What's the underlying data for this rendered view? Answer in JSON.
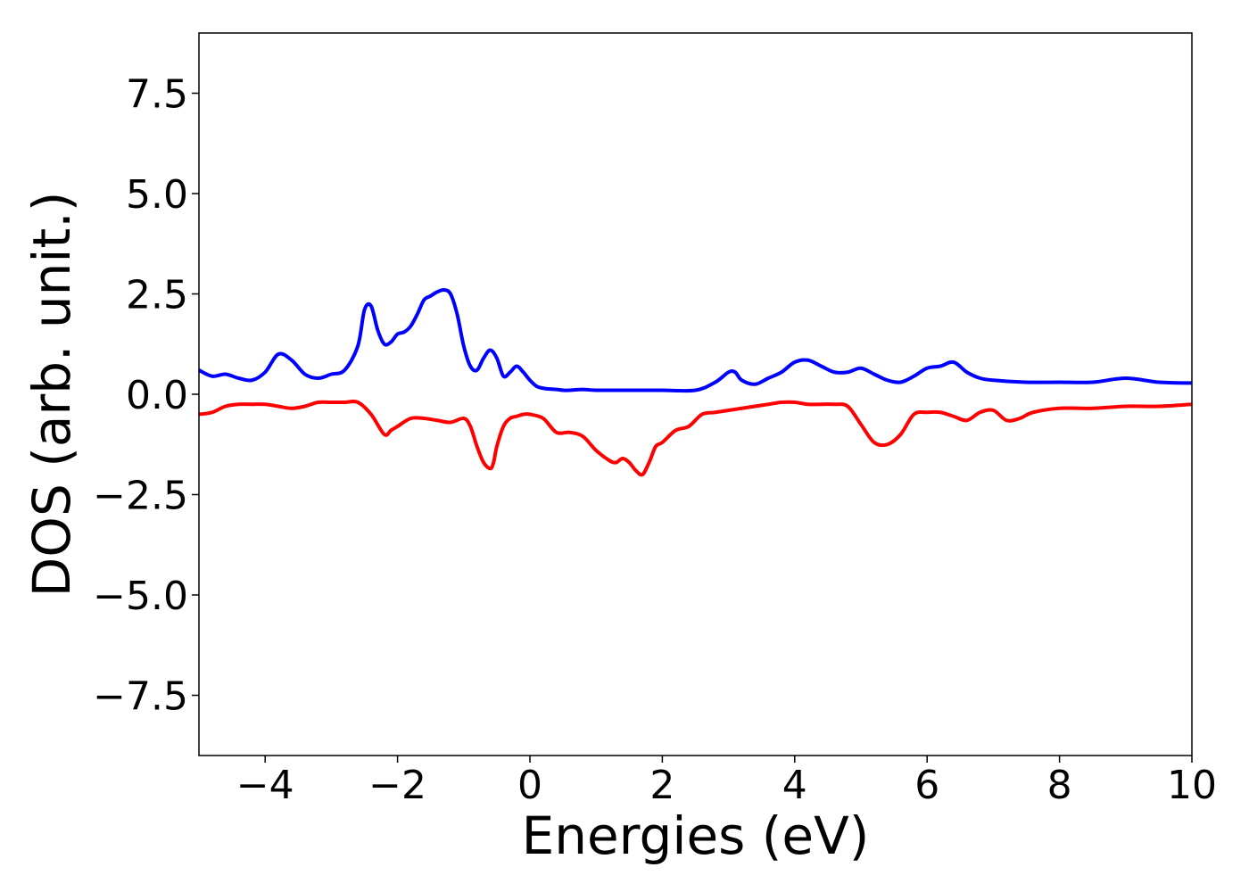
{
  "chart_data": {
    "type": "line",
    "title": "",
    "xlabel": "Energies (eV)",
    "ylabel": "DOS (arb. unit.)",
    "xlim": [
      -5,
      10
    ],
    "ylim": [
      -9.0,
      9.0
    ],
    "xticks": [
      -4,
      -2,
      0,
      2,
      4,
      6,
      8,
      10
    ],
    "xtick_labels": [
      "−4",
      "−2",
      "0",
      "2",
      "4",
      "6",
      "8",
      "10"
    ],
    "yticks": [
      7.5,
      5.0,
      2.5,
      0.0,
      -2.5,
      -5.0,
      -7.5
    ],
    "ytick_labels": [
      "7.5",
      "5.0",
      "2.5",
      "0.0",
      "−2.5",
      "−5.0",
      "−7.5"
    ],
    "grid": false,
    "legend": "none",
    "series": [
      {
        "color": "#0000ff",
        "x": [
          -5.0,
          -4.8,
          -4.6,
          -4.4,
          -4.2,
          -4.0,
          -3.8,
          -3.6,
          -3.4,
          -3.2,
          -3.0,
          -2.8,
          -2.6,
          -2.5,
          -2.4,
          -2.3,
          -2.2,
          -2.1,
          -2.0,
          -1.9,
          -1.8,
          -1.7,
          -1.6,
          -1.5,
          -1.4,
          -1.3,
          -1.2,
          -1.1,
          -1.0,
          -0.9,
          -0.8,
          -0.7,
          -0.6,
          -0.5,
          -0.4,
          -0.3,
          -0.2,
          -0.1,
          0.0,
          0.1,
          0.2,
          0.3,
          0.4,
          0.5,
          0.6,
          0.8,
          1.0,
          1.5,
          2.0,
          2.5,
          2.8,
          3.0,
          3.1,
          3.2,
          3.4,
          3.6,
          3.8,
          4.0,
          4.2,
          4.4,
          4.6,
          4.8,
          5.0,
          5.2,
          5.4,
          5.6,
          5.8,
          6.0,
          6.2,
          6.4,
          6.6,
          6.8,
          7.0,
          7.5,
          8.0,
          8.5,
          9.0,
          9.5,
          10.0
        ],
        "y": [
          0.6,
          0.45,
          0.5,
          0.4,
          0.35,
          0.55,
          1.0,
          0.85,
          0.5,
          0.4,
          0.5,
          0.6,
          1.2,
          2.1,
          2.2,
          1.6,
          1.25,
          1.3,
          1.5,
          1.55,
          1.7,
          2.0,
          2.35,
          2.45,
          2.55,
          2.6,
          2.5,
          2.0,
          1.2,
          0.7,
          0.6,
          0.9,
          1.1,
          0.9,
          0.45,
          0.55,
          0.7,
          0.55,
          0.35,
          0.2,
          0.15,
          0.13,
          0.12,
          0.1,
          0.1,
          0.12,
          0.1,
          0.1,
          0.1,
          0.1,
          0.3,
          0.55,
          0.55,
          0.35,
          0.25,
          0.4,
          0.55,
          0.8,
          0.85,
          0.7,
          0.55,
          0.55,
          0.65,
          0.5,
          0.35,
          0.3,
          0.45,
          0.65,
          0.7,
          0.8,
          0.55,
          0.4,
          0.35,
          0.3,
          0.3,
          0.3,
          0.4,
          0.3,
          0.28
        ]
      },
      {
        "color": "#ff0000",
        "x": [
          -5.0,
          -4.8,
          -4.6,
          -4.4,
          -4.2,
          -4.0,
          -3.8,
          -3.6,
          -3.4,
          -3.2,
          -3.0,
          -2.8,
          -2.6,
          -2.4,
          -2.2,
          -2.1,
          -2.0,
          -1.8,
          -1.6,
          -1.4,
          -1.2,
          -1.0,
          -0.9,
          -0.8,
          -0.7,
          -0.6,
          -0.55,
          -0.5,
          -0.4,
          -0.3,
          -0.2,
          -0.1,
          0.0,
          0.2,
          0.4,
          0.6,
          0.8,
          1.0,
          1.2,
          1.3,
          1.4,
          1.5,
          1.6,
          1.7,
          1.8,
          1.9,
          2.0,
          2.2,
          2.4,
          2.6,
          2.8,
          3.0,
          3.2,
          3.4,
          3.6,
          3.8,
          4.0,
          4.2,
          4.4,
          4.6,
          4.8,
          5.0,
          5.2,
          5.4,
          5.6,
          5.8,
          6.0,
          6.2,
          6.4,
          6.6,
          6.8,
          7.0,
          7.2,
          7.4,
          7.6,
          8.0,
          8.5,
          9.0,
          9.5,
          10.0
        ],
        "y": [
          -0.5,
          -0.45,
          -0.3,
          -0.25,
          -0.25,
          -0.25,
          -0.3,
          -0.35,
          -0.3,
          -0.2,
          -0.2,
          -0.2,
          -0.2,
          -0.5,
          -1.0,
          -0.9,
          -0.8,
          -0.6,
          -0.6,
          -0.65,
          -0.7,
          -0.6,
          -0.8,
          -1.3,
          -1.7,
          -1.85,
          -1.7,
          -1.3,
          -0.8,
          -0.6,
          -0.55,
          -0.5,
          -0.5,
          -0.6,
          -0.95,
          -0.95,
          -1.05,
          -1.4,
          -1.65,
          -1.7,
          -1.6,
          -1.7,
          -1.9,
          -2.0,
          -1.7,
          -1.3,
          -1.2,
          -0.9,
          -0.8,
          -0.5,
          -0.45,
          -0.4,
          -0.35,
          -0.3,
          -0.25,
          -0.2,
          -0.2,
          -0.25,
          -0.25,
          -0.25,
          -0.3,
          -0.75,
          -1.2,
          -1.25,
          -1.0,
          -0.5,
          -0.45,
          -0.45,
          -0.55,
          -0.65,
          -0.45,
          -0.4,
          -0.65,
          -0.6,
          -0.45,
          -0.35,
          -0.35,
          -0.3,
          -0.3,
          -0.25
        ]
      }
    ]
  }
}
